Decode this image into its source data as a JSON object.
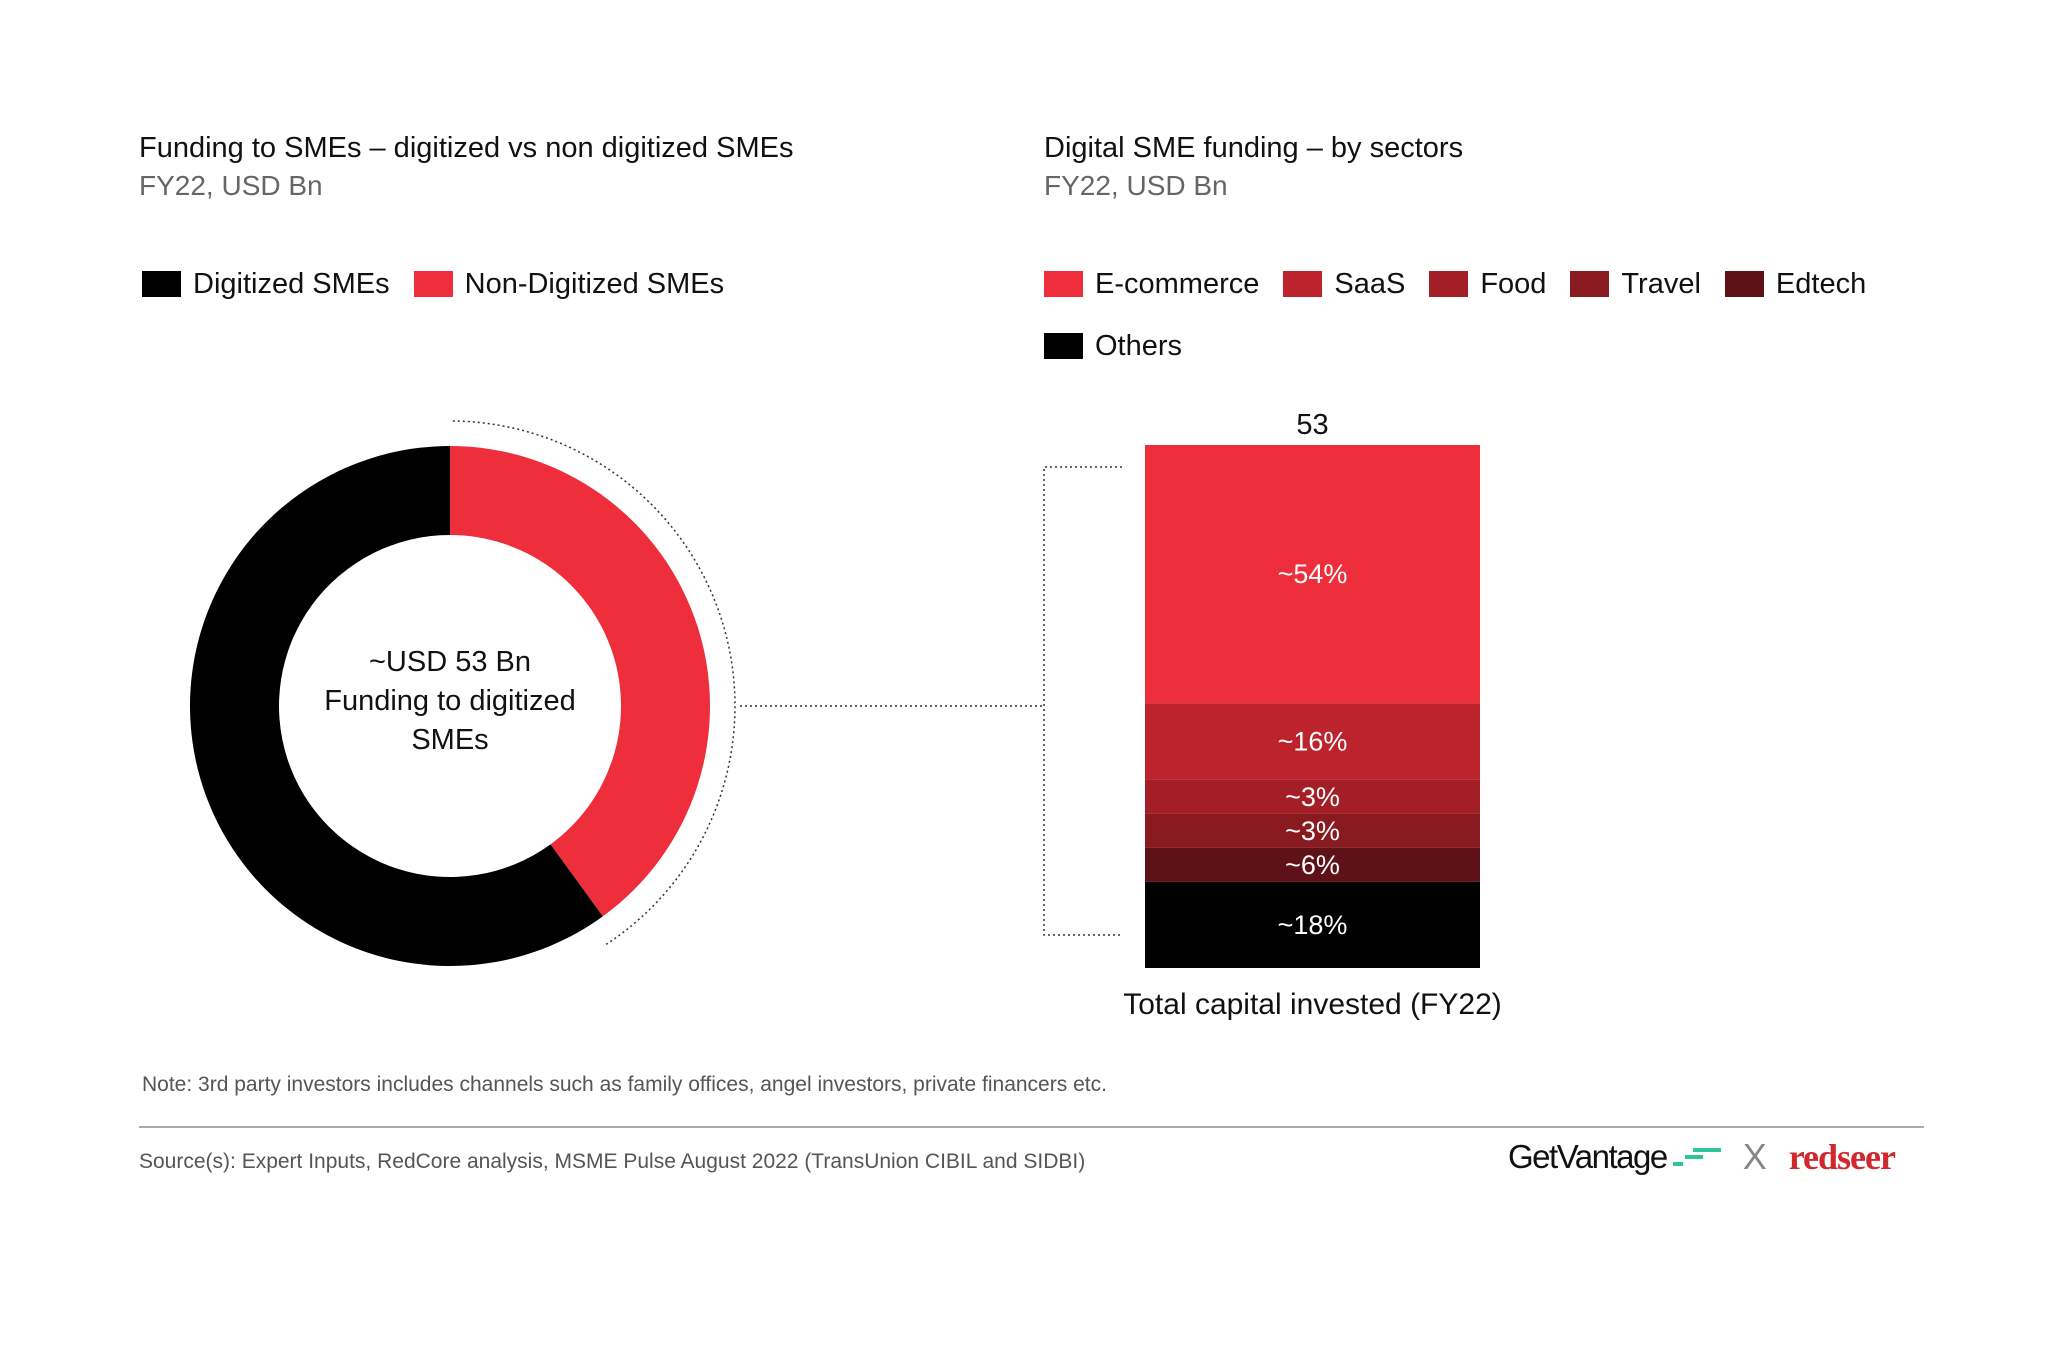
{
  "left_panel": {
    "title": "Funding to SMEs – digitized vs non digitized SMEs",
    "subtitle": "FY22, USD Bn",
    "legend": [
      {
        "label": "Digitized SMEs",
        "color": "#000000"
      },
      {
        "label": "Non-Digitized SMEs",
        "color": "#ee2e3b"
      }
    ],
    "center_label": [
      "~USD 53 Bn",
      "Funding to digitized",
      "SMEs"
    ]
  },
  "right_panel": {
    "title": "Digital SME funding – by sectors",
    "subtitle": "FY22, USD Bn",
    "legend": [
      {
        "label": "E-commerce",
        "color": "#ee2e3b"
      },
      {
        "label": "SaaS",
        "color": "#bd232d"
      },
      {
        "label": "Food",
        "color": "#a41e27"
      },
      {
        "label": "Travel",
        "color": "#881a20"
      },
      {
        "label": "Edtech",
        "color": "#5e1217"
      },
      {
        "label": "Others",
        "color": "#000000"
      }
    ]
  },
  "chart_data": [
    {
      "type": "pie",
      "subtype": "donut",
      "title": "Funding to SMEs – digitized vs non digitized SMEs",
      "subtitle": "FY22, USD Bn",
      "series": [
        {
          "name": "Digitized SMEs",
          "value": 60,
          "color": "#000000"
        },
        {
          "name": "Non-Digitized SMEs",
          "value": 40,
          "color": "#ee2e3b"
        }
      ],
      "legend_position": "top-left"
    },
    {
      "type": "bar",
      "subtype": "stacked-100",
      "title": "Digital SME funding – by sectors",
      "subtitle": "FY22, USD Bn",
      "categories": [
        "Total capital invested (FY22)"
      ],
      "total_label": "53",
      "series": [
        {
          "name": "E-commerce",
          "values": [
            54
          ],
          "label": "~54%",
          "color": "#ee2e3b"
        },
        {
          "name": "SaaS",
          "values": [
            16
          ],
          "label": "~16%",
          "color": "#bd232d"
        },
        {
          "name": "Food",
          "values": [
            3
          ],
          "label": "~3%",
          "color": "#a41e27"
        },
        {
          "name": "Travel",
          "values": [
            3
          ],
          "label": "~3%",
          "color": "#881a20"
        },
        {
          "name": "Edtech",
          "values": [
            6
          ],
          "label": "~6%",
          "color": "#5e1217"
        },
        {
          "name": "Others",
          "values": [
            18
          ],
          "label": "~18%",
          "color": "#000000"
        }
      ],
      "legend_position": "top"
    }
  ],
  "footer": {
    "note": "Note: 3rd party investors includes channels such as family offices, angel investors, private financers etc.",
    "source": "Source(s): Expert Inputs, RedCore analysis, MSME Pulse August 2022 (TransUnion CIBIL and SIDBI)",
    "logos": {
      "getvantage": "GetVantage",
      "separator": "X",
      "redseer": "redseer",
      "getvantage_accent": "#2fc59a",
      "redseer_color": "#d0282e"
    }
  }
}
